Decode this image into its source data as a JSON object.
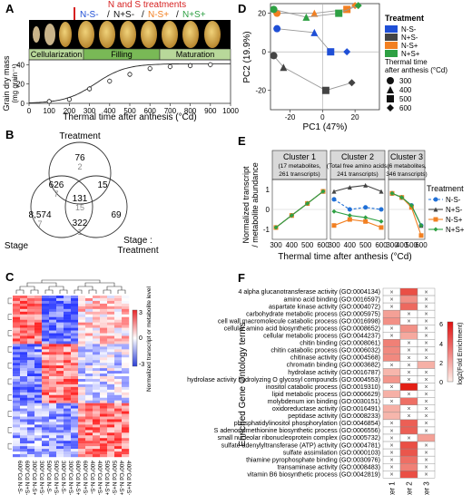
{
  "panel_letters": {
    "a": "A",
    "b": "B",
    "c": "C",
    "d": "D",
    "e": "E",
    "f": "F"
  },
  "panel_a": {
    "treatments_title": "N and S treatments",
    "treatment_labels": [
      "N-S-",
      "N+S-",
      "N-S+",
      "N+S+"
    ],
    "separator": "/",
    "stages": [
      "Cellularization",
      "Filling",
      "Maturation"
    ],
    "chart_data": {
      "type": "line",
      "xlabel": "Thermal time after anthesis (°Cd)",
      "ylabel": "Grain dry mass",
      "ylabel_unit": "(mg grain⁻¹)",
      "x_ticks": [
        0,
        100,
        200,
        300,
        400,
        500,
        600,
        700,
        800,
        900,
        1000
      ],
      "y_ticks": [
        0,
        20,
        40
      ],
      "xlim": [
        0,
        1000
      ],
      "ylim": [
        0,
        45
      ],
      "points": {
        "x": [
          100,
          200,
          300,
          400,
          500,
          600,
          700,
          800,
          900
        ],
        "y": [
          2,
          4,
          15,
          23,
          30,
          36,
          38,
          39,
          40
        ]
      }
    }
  },
  "panel_b": {
    "sets": [
      "Treatment",
      "Stage",
      "Stage : Treatment"
    ],
    "regions": [
      {
        "main": "76",
        "sub": "2"
      },
      {
        "main": "626",
        "sub": "7"
      },
      {
        "main": "131",
        "sub": "15"
      },
      {
        "main": "15",
        "sub": ""
      },
      {
        "main": "8,574",
        "sub": "7"
      },
      {
        "main": "322",
        "sub": "1"
      },
      {
        "main": "69",
        "sub": ""
      }
    ]
  },
  "panel_c": {
    "colorbar_label": "Normalized transcript or metabolite level",
    "colorbar_ticks": [
      "3",
      "0",
      "-3"
    ],
    "sample_labels": [
      "600°Cd N-S-",
      "600°Cd N+S-",
      "300°Cd N-S+",
      "300°Cd N+S+",
      "500°Cd N-S-",
      "500°Cd N+S-",
      "300°Cd N-S-",
      "300°Cd N+S-",
      "600°Cd N-S+",
      "600°Cd N+S+",
      "400°Cd N-S-",
      "400°Cd N+S-",
      "500°Cd N-S+",
      "500°Cd N+S+",
      "400°Cd N-S+",
      "400°Cd N+S+"
    ]
  },
  "panel_d": {
    "chart_data": {
      "type": "scatter",
      "xlabel": "PC1 (47%)",
      "ylabel": "PC2 (19.9%)",
      "x_ticks": [
        -20,
        0,
        20
      ],
      "y_ticks": [
        -20,
        0,
        20
      ],
      "xlim": [
        -32,
        35
      ],
      "ylim": [
        -30,
        25
      ],
      "legend_treatment_title": "Treatment",
      "legend_time_title": "Thermal time after anthesis (°Cd)",
      "series": [
        {
          "name": "N-S-",
          "color": "#1f4fd6",
          "x": [
            -28,
            -5,
            5,
            15
          ],
          "y": [
            12,
            10,
            0,
            0
          ]
        },
        {
          "name": "N+S-",
          "color": "#444444",
          "x": [
            -30,
            -24,
            2,
            18
          ],
          "y": [
            -2,
            -8,
            -20,
            -16
          ]
        },
        {
          "name": "N-S+",
          "color": "#f28022",
          "x": [
            -28,
            -5,
            15,
            20
          ],
          "y": [
            20,
            20,
            22,
            24
          ]
        },
        {
          "name": "N+S+",
          "color": "#2ea043",
          "x": [
            -30,
            -10,
            10,
            22
          ],
          "y": [
            22,
            18,
            20,
            24
          ]
        }
      ],
      "time_points": [
        "300",
        "400",
        "500",
        "600"
      ]
    }
  },
  "panel_e": {
    "ylabel": "Normalized transcript / metabolite abundance",
    "xlabel": "Thermal time after anthesis (°Cd)",
    "legend_title": "Treatment",
    "treatments": [
      "N-S-",
      "N+S-",
      "N-S+",
      "N+S+"
    ],
    "colors": [
      "#1f6fd6",
      "#444444",
      "#f28022",
      "#2ea043"
    ],
    "clusters": [
      {
        "title": "Cluster 1",
        "subtitle": "(17 metabolites, 261 transcripts)"
      },
      {
        "title": "Cluster 2",
        "subtitle": "(Total free amino acids, 241 transcripts)"
      },
      {
        "title": "Cluster 3",
        "subtitle": "(6 metabolites, 346 transcripts)"
      }
    ],
    "chart_data": {
      "type": "line",
      "x": [
        300,
        400,
        500,
        600
      ],
      "ylim": [
        -1.4,
        1.4
      ],
      "y_ticks": [
        -1,
        0,
        1
      ],
      "panels": [
        {
          "series": [
            [
              -0.9,
              -0.3,
              0.3,
              0.9
            ],
            [
              -0.9,
              -0.3,
              0.3,
              0.9
            ],
            [
              -0.9,
              -0.3,
              0.3,
              0.9
            ],
            [
              -0.9,
              -0.3,
              0.3,
              0.9
            ]
          ]
        },
        {
          "series": [
            [
              0.5,
              0.0,
              0.1,
              0.0
            ],
            [
              0.9,
              1.1,
              1.2,
              0.9
            ],
            [
              -0.8,
              -0.5,
              -0.6,
              -0.9
            ],
            [
              -0.1,
              -0.3,
              -0.4,
              -0.6
            ]
          ]
        },
        {
          "series": [
            [
              0.8,
              0.6,
              0.2,
              -0.8
            ],
            [
              0.8,
              0.6,
              0.2,
              -0.8
            ],
            [
              0.8,
              0.6,
              0.1,
              -1.3
            ],
            [
              0.8,
              0.6,
              0.2,
              -0.8
            ]
          ]
        }
      ]
    }
  },
  "panel_f": {
    "ylabel": "Enriched Gene Ontology terms",
    "columns": [
      "Cluster 1",
      "Cluster 2",
      "Cluster 3"
    ],
    "colorbar_label": "log2(Fold Enrichment)",
    "colorbar_ticks": [
      "6",
      "4",
      "2",
      "0"
    ],
    "terms": [
      "4 alpha glucanotransferase activity (GO:0004134)",
      "amino acid binding (GO:0016597)",
      "aspartate kinase activity (GO:0004072)",
      "carbohydrate metabolic process (GO:0005975)",
      "cell wall macromolecule catabolic process (GO:0016998)",
      "cellular amino acid biosynthetic process (GO:0008652)",
      "cellular metabolic process (GO:0044237)",
      "chitin binding (GO:0008061)",
      "chitin catabolic process (GO:0006032)",
      "chitinase activity (GO:0004568)",
      "chromatin binding (GO:0003682)",
      "hydrolase activity (GO:0016787)",
      "hydrolase activity hydrolyzing O glycosyl compounds (GO:0004553)",
      "inositol catabolic process (GO:0019310)",
      "lipid metabolic process (GO:0006629)",
      "molybdenum ion binding (GO:0030151)",
      "oxidoreductase activity (GO:0016491)",
      "peptidase activity (GO:0008233)",
      "phosphatidylinositol phosphorylation (GO:0046854)",
      "S adenosylmethionine biosynthetic process (GO:0006556)",
      "small nucleolar ribonucleoprotein complex (GO:0005732)",
      "sulfate adenylyltransferase (ATP) activity (GO:0004781)",
      "sulfate assimilation (GO:0000103)",
      "thiamine pyrophosphate binding (GO:0030976)",
      "transaminase activity (GO:0008483)",
      "vitamin B6 biosynthetic process (GO:0042819)"
    ],
    "cells": [
      [
        0,
        5.0,
        0
      ],
      [
        0,
        3.0,
        0
      ],
      [
        0,
        4.2,
        0
      ],
      [
        2.5,
        0,
        0
      ],
      [
        3.0,
        0,
        0
      ],
      [
        0,
        3.0,
        0
      ],
      [
        0,
        2.2,
        0
      ],
      [
        3.5,
        0,
        0
      ],
      [
        3.2,
        0,
        0
      ],
      [
        3.2,
        0,
        0
      ],
      [
        0,
        0,
        2.0
      ],
      [
        1.8,
        0,
        0
      ],
      [
        2.8,
        0,
        0
      ],
      [
        0,
        6.5,
        0
      ],
      [
        2.0,
        0,
        0
      ],
      [
        0,
        4.0,
        0
      ],
      [
        2.0,
        0,
        0
      ],
      [
        1.8,
        0,
        0
      ],
      [
        0,
        4.5,
        0
      ],
      [
        0,
        4.5,
        0
      ],
      [
        0,
        0,
        2.5
      ],
      [
        0,
        5.0,
        0
      ],
      [
        0,
        4.8,
        0
      ],
      [
        0,
        4.0,
        0
      ],
      [
        0,
        3.5,
        0
      ],
      [
        0,
        5.0,
        0
      ]
    ],
    "missing_mark": "×"
  }
}
